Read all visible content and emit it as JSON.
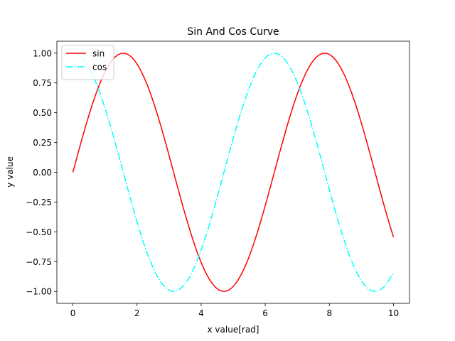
{
  "chart_data": {
    "type": "line",
    "title": "Sin And Cos Curve",
    "xlabel": "x value[rad]",
    "ylabel": "y value",
    "xlim": [
      -0.5,
      10.5
    ],
    "ylim": [
      -1.1,
      1.1
    ],
    "x_ticks": [
      0,
      2,
      4,
      6,
      8,
      10
    ],
    "x_tick_labels": [
      "0",
      "2",
      "4",
      "6",
      "8",
      "10"
    ],
    "y_ticks": [
      -1.0,
      -0.75,
      -0.5,
      -0.25,
      0.0,
      0.25,
      0.5,
      0.75,
      1.0
    ],
    "y_tick_labels": [
      "−1.00",
      "−0.75",
      "−0.50",
      "−0.25",
      "0.00",
      "0.25",
      "0.50",
      "0.75",
      "1.00"
    ],
    "grid": false,
    "legend_position": "top-left",
    "x_range": [
      0,
      10
    ],
    "sample_count": 100,
    "series": [
      {
        "name": "sin",
        "function": "sin(x)",
        "color": "#ff0000",
        "line_style": "solid"
      },
      {
        "name": "cos",
        "function": "cos(x)",
        "color": "#00ffff",
        "line_style": "dash-dot"
      }
    ]
  }
}
